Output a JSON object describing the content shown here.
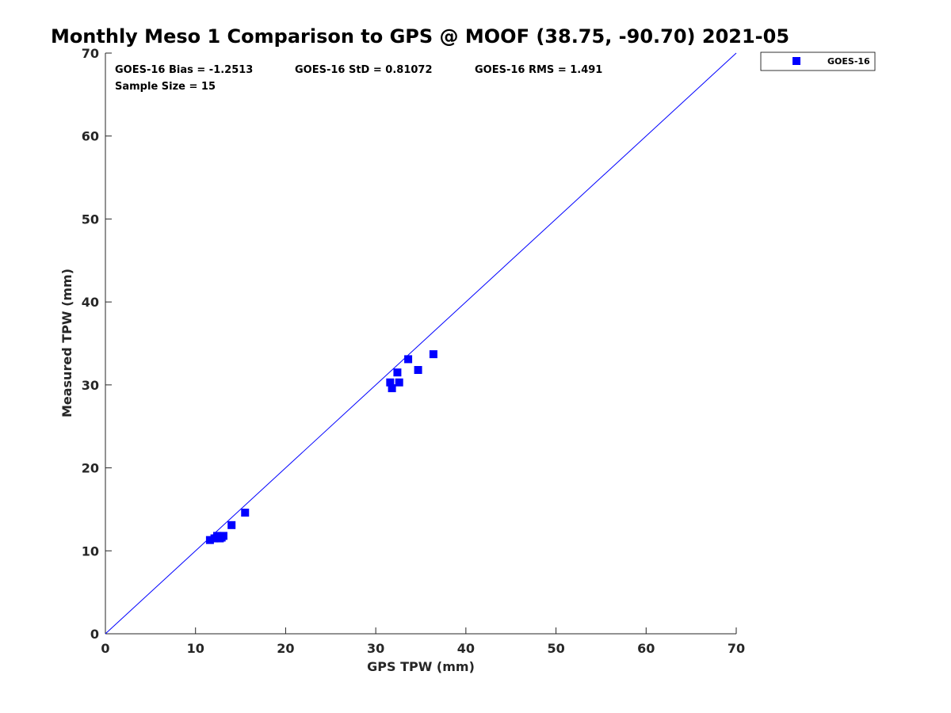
{
  "chart_data": {
    "type": "scatter",
    "title": "Monthly Meso 1 Comparison to GPS @ MOOF (38.75, -90.70) 2021-05",
    "xlabel": "GPS TPW (mm)",
    "ylabel": "Measured TPW (mm)",
    "xlim": [
      0,
      70
    ],
    "ylim": [
      0,
      70
    ],
    "xticks": [
      0,
      10,
      20,
      30,
      40,
      50,
      60,
      70
    ],
    "yticks": [
      0,
      10,
      20,
      30,
      40,
      50,
      60,
      70
    ],
    "grid": false,
    "legend_position": "top-right-outside",
    "reference_line": {
      "x": [
        0,
        70
      ],
      "y": [
        0,
        70
      ],
      "color": "#0000ff"
    },
    "stats": {
      "bias": "GOES-16 Bias = -1.2513",
      "std": "GOES-16 StD = 0.81072",
      "rms": "GOES-16 RMS = 1.491",
      "sample": "Sample Size = 15"
    },
    "series": [
      {
        "name": "GOES-16",
        "color": "#0000ff",
        "marker": "square",
        "points": [
          [
            11.6,
            11.3
          ],
          [
            12.1,
            11.5
          ],
          [
            12.4,
            11.8
          ],
          [
            12.7,
            11.5
          ],
          [
            13.1,
            11.8
          ],
          [
            14.0,
            13.1
          ],
          [
            15.5,
            14.6
          ],
          [
            31.6,
            30.3
          ],
          [
            31.8,
            29.6
          ],
          [
            32.4,
            31.5
          ],
          [
            32.6,
            30.3
          ],
          [
            33.6,
            33.1
          ],
          [
            34.7,
            31.8
          ],
          [
            36.4,
            33.7
          ],
          [
            12.9,
            11.6
          ]
        ]
      }
    ]
  }
}
